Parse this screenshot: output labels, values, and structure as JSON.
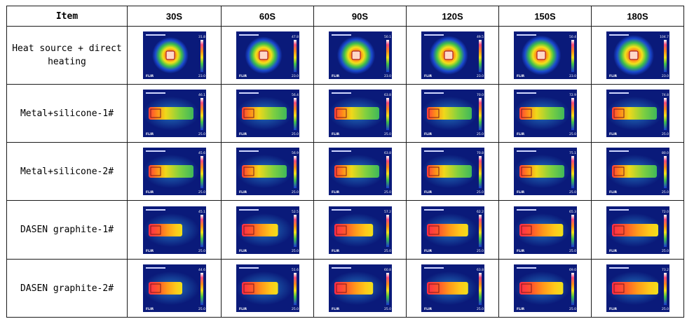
{
  "header": {
    "item": "Item",
    "times": [
      "30S",
      "60S",
      "90S",
      "120S",
      "150S",
      "180S"
    ]
  },
  "rows": [
    {
      "label": "Heat source + direct heating",
      "type": "direct",
      "max_temps": [
        "31.8",
        "47.8",
        "50.1",
        "49.5",
        "50.4",
        "104.7"
      ],
      "min_temp": "23.0"
    },
    {
      "label": "Metal+silicone-1#",
      "type": "metal",
      "max_temps": [
        "46.1",
        "56.4",
        "63.8",
        "70.0",
        "72.9",
        "74.8"
      ],
      "min_temp": "25.0"
    },
    {
      "label": "Metal+silicone-2#",
      "type": "metal",
      "max_temps": [
        "45.6",
        "56.9",
        "63.8",
        "70.8",
        "75.1",
        "80.0"
      ],
      "min_temp": "25.0"
    },
    {
      "label": "DASEN graphite-1#",
      "type": "graphite",
      "max_temps": [
        "45.1",
        "52.5",
        "57.2",
        "62.2",
        "65.3",
        "72.0"
      ],
      "min_temp": "25.0"
    },
    {
      "label": "DASEN graphite-2#",
      "type": "graphite",
      "max_temps": [
        "44.6",
        "51.6",
        "60.8",
        "63.8",
        "69.0",
        "73.2"
      ],
      "min_temp": "25.0"
    }
  ],
  "logo_text": "FLIR"
}
